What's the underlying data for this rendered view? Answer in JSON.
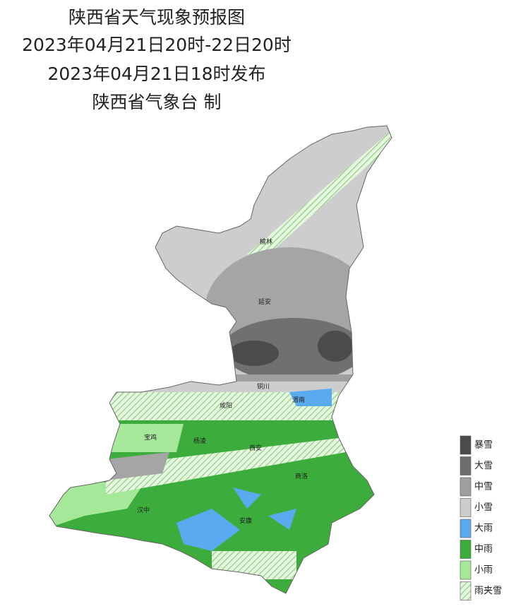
{
  "header": {
    "title": "陕西省天气现象预报图",
    "period": "2023年04月21日20时-22日20时",
    "issued": "2023年04月21日18时发布",
    "publisher": "陕西省气象台 制"
  },
  "cities": [
    {
      "label": "榆林"
    },
    {
      "label": "延安"
    },
    {
      "label": "铜川"
    },
    {
      "label": "渭南"
    },
    {
      "label": "咸阳"
    },
    {
      "label": "宝鸡"
    },
    {
      "label": "杨凌"
    },
    {
      "label": "西安"
    },
    {
      "label": "商洛"
    },
    {
      "label": "汉中"
    },
    {
      "label": "安康"
    }
  ],
  "legend": [
    {
      "label": "暴雪",
      "color": "#4b4b4b"
    },
    {
      "label": "大雪",
      "color": "#6e6e6e"
    },
    {
      "label": "中雪",
      "color": "#9f9f9f"
    },
    {
      "label": "小雪",
      "color": "#cdcdcd"
    },
    {
      "label": "大雨",
      "color": "#5aaaf0"
    },
    {
      "label": "中雨",
      "color": "#3cac3c"
    },
    {
      "label": "小雨",
      "color": "#a6e89a"
    },
    {
      "label": "雨夹雪",
      "color": "hatch"
    }
  ]
}
